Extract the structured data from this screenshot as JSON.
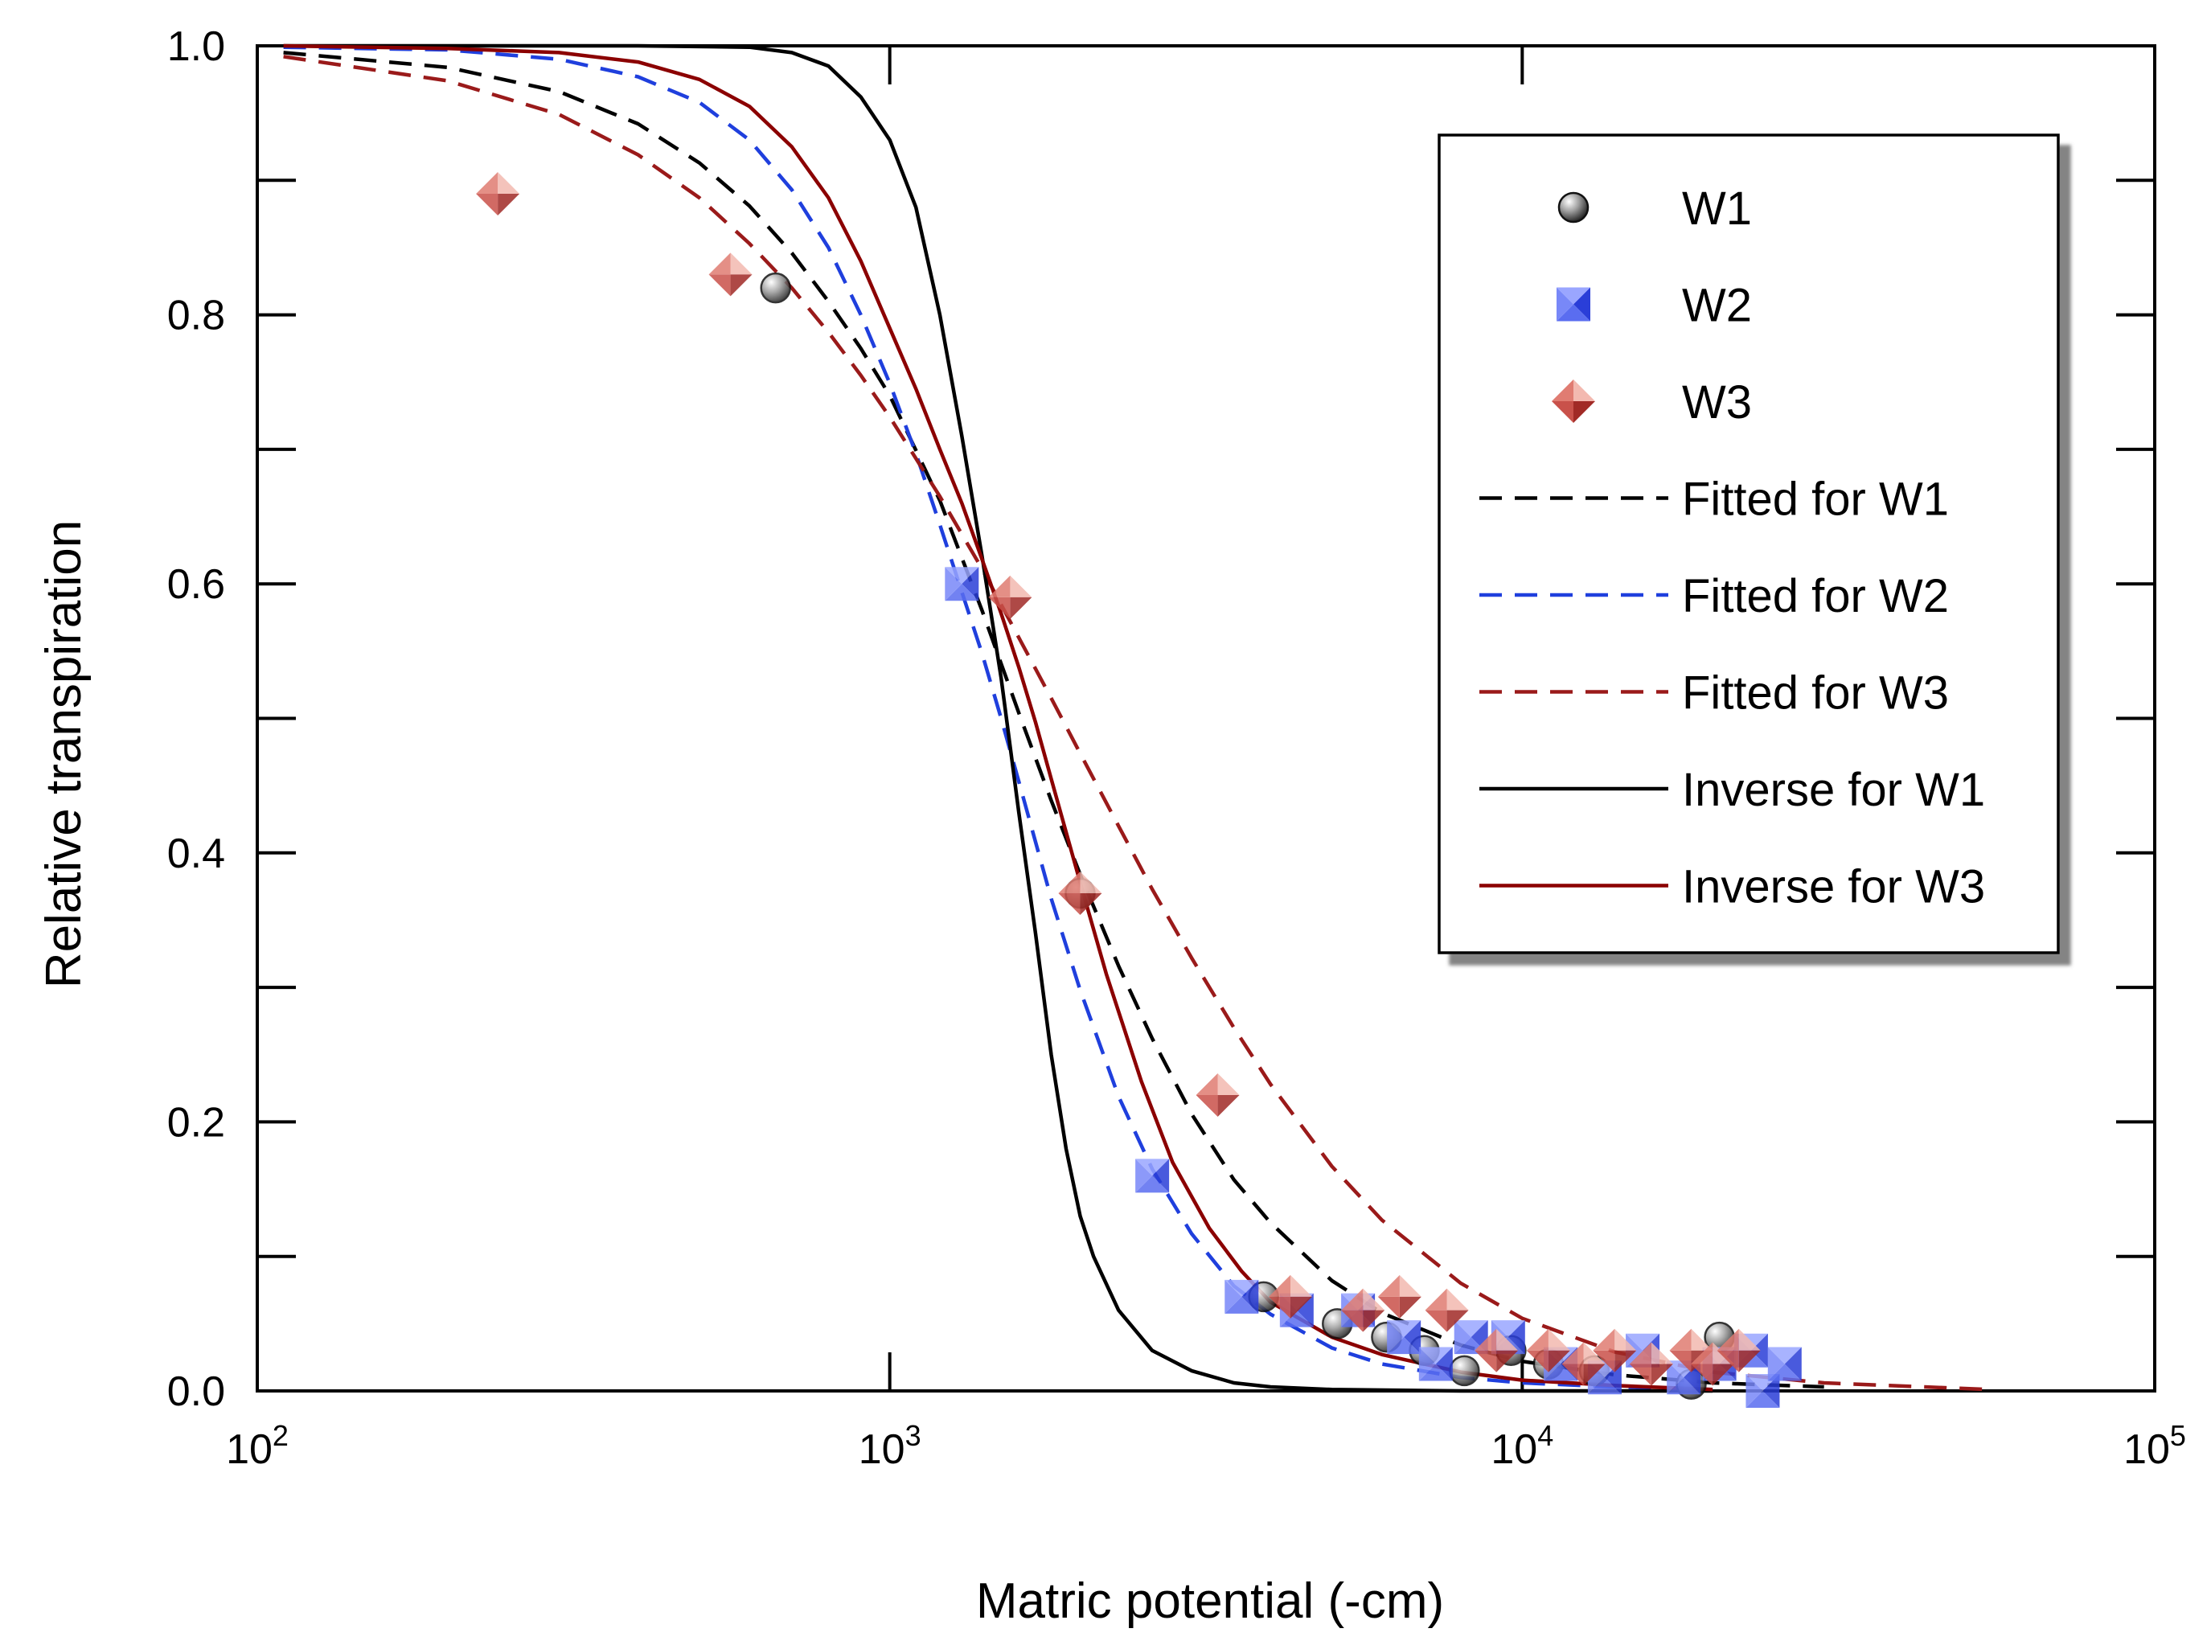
{
  "chart_data": {
    "type": "scatter",
    "xscale": "log",
    "xlabel": "Matric potential (-cm)",
    "ylabel": "Relative transpiration",
    "xlim": [
      100,
      100000
    ],
    "ylim": [
      0,
      1.0
    ],
    "x_ticks": [
      {
        "base": "10",
        "exp": "2",
        "value": 100
      },
      {
        "base": "10",
        "exp": "3",
        "value": 1000
      },
      {
        "base": "10",
        "exp": "4",
        "value": 10000
      },
      {
        "base": "10",
        "exp": "5",
        "value": 100000
      }
    ],
    "y_ticks": [
      "0.0",
      "0.2",
      "0.4",
      "0.6",
      "0.8",
      "1.0"
    ],
    "legend_position": "top-right",
    "colors": {
      "w1": "#1a1a1a",
      "w2": "#3355ee",
      "w3": "#c03a3a",
      "fit_w1": "#000000",
      "fit_w2": "#1f3fdd",
      "fit_w3": "#9a1a1a",
      "inv_w1": "#000000",
      "inv_w3": "#8b0000"
    },
    "series": [
      {
        "name": "W1",
        "kind": "points",
        "marker": "circle",
        "x": [
          660,
          2000,
          3900,
          5100,
          6100,
          7000,
          8100,
          9600,
          11000,
          13000,
          18500,
          20500
        ],
        "y": [
          0.82,
          0.37,
          0.07,
          0.05,
          0.04,
          0.03,
          0.015,
          0.03,
          0.02,
          0.015,
          0.005,
          0.04
        ]
      },
      {
        "name": "W2",
        "kind": "points",
        "marker": "square",
        "x": [
          1300,
          2600,
          3600,
          4400,
          5500,
          6500,
          7300,
          8300,
          9500,
          11500,
          13500,
          15500,
          18000,
          20500,
          23000,
          24000,
          26000
        ],
        "y": [
          0.6,
          0.16,
          0.07,
          0.06,
          0.06,
          0.04,
          0.02,
          0.04,
          0.04,
          0.02,
          0.01,
          0.03,
          0.01,
          0.02,
          0.03,
          0.0,
          0.02
        ]
      },
      {
        "name": "W3",
        "kind": "points",
        "marker": "diamond",
        "x": [
          240,
          560,
          1550,
          2000,
          3300,
          4300,
          5600,
          6400,
          7600,
          9100,
          11000,
          12500,
          14000,
          16000,
          18500,
          20000,
          22000
        ],
        "y": [
          0.89,
          0.83,
          0.59,
          0.37,
          0.22,
          0.07,
          0.06,
          0.07,
          0.06,
          0.03,
          0.03,
          0.02,
          0.03,
          0.02,
          0.03,
          0.02,
          0.03
        ]
      },
      {
        "name": "Fitted for W1",
        "kind": "line",
        "dash": "dash",
        "x": [
          110,
          200,
          300,
          400,
          500,
          600,
          700,
          800,
          900,
          1000,
          1200,
          1400,
          1600,
          1800,
          2000,
          2300,
          2600,
          3000,
          3500,
          4000,
          5000,
          6000,
          8000,
          10000,
          14000,
          20000,
          30000
        ],
        "y": [
          0.995,
          0.984,
          0.966,
          0.942,
          0.913,
          0.881,
          0.846,
          0.81,
          0.775,
          0.74,
          0.662,
          0.58,
          0.504,
          0.439,
          0.384,
          0.316,
          0.262,
          0.206,
          0.157,
          0.125,
          0.082,
          0.058,
          0.034,
          0.022,
          0.012,
          0.006,
          0.003
        ]
      },
      {
        "name": "Fitted for W2",
        "kind": "line",
        "dash": "dash",
        "x": [
          110,
          200,
          300,
          400,
          500,
          600,
          700,
          800,
          900,
          1000,
          1100,
          1200,
          1300,
          1400,
          1500,
          1600,
          1800,
          2000,
          2300,
          2600,
          3000,
          3500,
          4000,
          5000,
          6000,
          8000,
          10000,
          14000,
          20000
        ],
        "y": [
          0.999,
          0.997,
          0.99,
          0.977,
          0.958,
          0.93,
          0.893,
          0.85,
          0.8,
          0.749,
          0.697,
          0.644,
          0.594,
          0.548,
          0.5,
          0.453,
          0.366,
          0.298,
          0.219,
          0.165,
          0.117,
          0.078,
          0.057,
          0.032,
          0.02,
          0.01,
          0.006,
          0.003,
          0.001
        ]
      },
      {
        "name": "Fitted for W3",
        "kind": "line",
        "dash": "dash",
        "x": [
          110,
          200,
          300,
          400,
          500,
          600,
          700,
          800,
          900,
          1000,
          1200,
          1400,
          1600,
          1800,
          2000,
          2300,
          2600,
          3000,
          3500,
          4000,
          5000,
          6000,
          8000,
          10000,
          14000,
          20000,
          30000,
          55000
        ],
        "y": [
          0.992,
          0.974,
          0.949,
          0.919,
          0.887,
          0.853,
          0.82,
          0.787,
          0.755,
          0.724,
          0.665,
          0.611,
          0.56,
          0.515,
          0.474,
          0.42,
          0.373,
          0.322,
          0.27,
          0.228,
          0.167,
          0.127,
          0.08,
          0.054,
          0.029,
          0.014,
          0.006,
          0.001
        ]
      },
      {
        "name": "Inverse for W1",
        "kind": "line",
        "dash": "solid",
        "x": [
          110,
          400,
          600,
          700,
          800,
          900,
          1000,
          1100,
          1200,
          1300,
          1400,
          1500,
          1600,
          1700,
          1800,
          1900,
          2000,
          2100,
          2300,
          2600,
          3000,
          3500,
          4000,
          5000,
          8000,
          20000
        ],
        "y": [
          1.0,
          1.0,
          0.999,
          0.995,
          0.985,
          0.962,
          0.93,
          0.88,
          0.8,
          0.71,
          0.62,
          0.53,
          0.43,
          0.34,
          0.25,
          0.18,
          0.13,
          0.1,
          0.06,
          0.03,
          0.015,
          0.006,
          0.003,
          0.001,
          0.0,
          0.0
        ]
      },
      {
        "name": "Inverse for W3",
        "kind": "line",
        "dash": "solid",
        "x": [
          110,
          200,
          300,
          400,
          500,
          600,
          700,
          800,
          900,
          1000,
          1100,
          1200,
          1300,
          1400,
          1500,
          1600,
          1700,
          1800,
          2000,
          2200,
          2500,
          2800,
          3200,
          3600,
          4000,
          5000,
          6000,
          8000,
          10000,
          14000,
          20000
        ],
        "y": [
          1.0,
          0.998,
          0.995,
          0.988,
          0.975,
          0.955,
          0.925,
          0.887,
          0.84,
          0.79,
          0.745,
          0.7,
          0.66,
          0.618,
          0.578,
          0.538,
          0.497,
          0.455,
          0.378,
          0.31,
          0.23,
          0.17,
          0.121,
          0.089,
          0.066,
          0.04,
          0.027,
          0.014,
          0.008,
          0.004,
          0.001
        ]
      }
    ]
  }
}
